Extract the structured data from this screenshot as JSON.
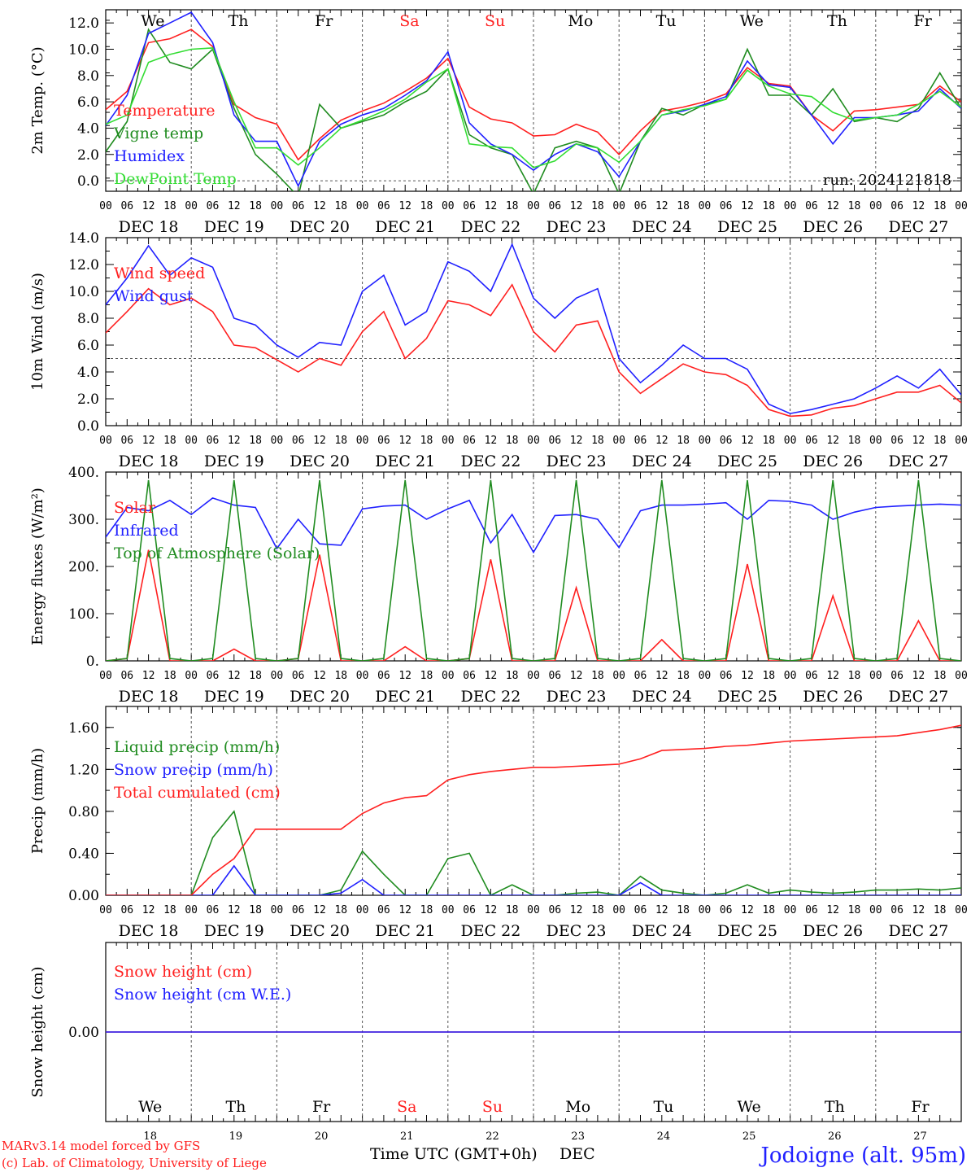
{
  "colors": {
    "red": "#ff2020",
    "blue": "#2020ff",
    "green": "#208c20",
    "lightgreen": "#33dd33",
    "grid": "#555555"
  },
  "x_axis": {
    "days": [
      "DEC 18",
      "DEC 19",
      "DEC 20",
      "DEC 21",
      "DEC 22",
      "DEC 23",
      "DEC 24",
      "DEC 25",
      "DEC 26",
      "DEC 27"
    ],
    "hour_labels": [
      "00",
      "06",
      "12",
      "18"
    ],
    "end_label": "00",
    "weekdays": [
      {
        "label": "We",
        "weekend": false
      },
      {
        "label": "Th",
        "weekend": false
      },
      {
        "label": "Fr",
        "weekend": false
      },
      {
        "label": "Sa",
        "weekend": true
      },
      {
        "label": "Su",
        "weekend": true
      },
      {
        "label": "Mo",
        "weekend": false
      },
      {
        "label": "Tu",
        "weekend": false
      },
      {
        "label": "We",
        "weekend": false
      },
      {
        "label": "Th",
        "weekend": false
      },
      {
        "label": "Fr",
        "weekend": false
      }
    ],
    "day_numbers": [
      "18",
      "19",
      "20",
      "21",
      "22",
      "23",
      "24",
      "25",
      "26",
      "27"
    ],
    "title": "Time UTC (GMT+0h)",
    "month": "DEC"
  },
  "footer": {
    "model": "MARv3.14 model forced by GFS",
    "credit": "(c) Lab. of Climatology, University of Liege",
    "location": "Jodoigne (alt. 95m)"
  },
  "chart_data": [
    {
      "id": "temp",
      "type": "line",
      "ylabel": "2m Temp. (°C)",
      "ylim": [
        -0.8,
        13
      ],
      "ticks": [
        0,
        2,
        4,
        6,
        8,
        10,
        12
      ],
      "tick_labels": [
        "0.0",
        "2.0",
        "4.0",
        "6.0",
        "8.0",
        "10.0",
        "12.0"
      ],
      "ref_line": 0,
      "run_label": "run: 2024121818",
      "x_hours": [
        0,
        6,
        12,
        18,
        24,
        30,
        36,
        42,
        48,
        54,
        60,
        66,
        72,
        78,
        84,
        90,
        96,
        102,
        108,
        114,
        120,
        126,
        132,
        138,
        144,
        150,
        156,
        162,
        168,
        174,
        180,
        186,
        192,
        198,
        204,
        210,
        216,
        222,
        228,
        234,
        240
      ],
      "series": [
        {
          "name": "Temperature",
          "color": "#ff2020",
          "values": [
            5.4,
            6.8,
            10.5,
            10.8,
            11.5,
            10.2,
            5.8,
            4.8,
            4.3,
            1.6,
            3.2,
            4.6,
            5.3,
            5.9,
            6.8,
            7.8,
            9.3,
            5.6,
            4.7,
            4.4,
            3.4,
            3.5,
            4.3,
            3.7,
            2.0,
            3.8,
            5.3,
            5.6,
            6.0,
            6.6,
            8.6,
            7.4,
            7.2,
            5.0,
            3.8,
            5.3,
            5.4,
            5.6,
            5.8,
            7.2,
            6.0
          ]
        },
        {
          "name": "Vigne temp",
          "color": "#208c20",
          "values": [
            2.2,
            4.5,
            11.5,
            9.0,
            8.5,
            10.0,
            5.5,
            2.0,
            0.5,
            -1.2,
            5.8,
            4.0,
            4.5,
            5.0,
            6.0,
            6.8,
            8.5,
            3.5,
            2.5,
            2.0,
            -1.0,
            2.5,
            3.0,
            2.5,
            -1.0,
            3.0,
            5.5,
            5.0,
            5.8,
            6.2,
            10.0,
            6.5,
            6.5,
            5.0,
            7.0,
            4.5,
            4.8,
            4.5,
            5.5,
            8.2,
            5.5
          ]
        },
        {
          "name": "Humidex",
          "color": "#2020ff",
          "values": [
            4.2,
            6.5,
            11.2,
            12.0,
            12.8,
            10.5,
            5.0,
            3.0,
            3.0,
            -0.4,
            3.0,
            4.3,
            5.0,
            5.5,
            6.5,
            7.6,
            9.8,
            4.4,
            2.8,
            2.0,
            0.8,
            2.0,
            2.8,
            2.2,
            0.3,
            3.0,
            5.0,
            5.3,
            5.8,
            6.4,
            9.1,
            7.3,
            7.1,
            5.0,
            2.8,
            4.8,
            4.8,
            5.0,
            5.3,
            7.0,
            5.5
          ]
        },
        {
          "name": "DewPoint Temp",
          "color": "#33dd33",
          "values": [
            4.3,
            5.0,
            9.0,
            9.6,
            10.0,
            10.1,
            6.0,
            2.5,
            2.5,
            1.2,
            2.5,
            4.0,
            4.6,
            5.3,
            6.2,
            7.5,
            8.5,
            2.8,
            2.6,
            2.5,
            1.0,
            1.5,
            2.8,
            2.5,
            1.4,
            3.0,
            5.0,
            5.4,
            5.7,
            6.2,
            8.4,
            7.2,
            6.6,
            6.4,
            5.2,
            4.6,
            4.8,
            5.0,
            5.8,
            6.8,
            5.6
          ]
        }
      ]
    },
    {
      "id": "wind",
      "type": "line",
      "ylabel": "10m Wind (m/s)",
      "ylim": [
        0,
        14
      ],
      "ticks": [
        0,
        2,
        4,
        6,
        8,
        10,
        12,
        14
      ],
      "tick_labels": [
        "0.0",
        "2.0",
        "4.0",
        "6.0",
        "8.0",
        "10.0",
        "12.0",
        "14.0"
      ],
      "ref_line": 5,
      "x_hours": [
        0,
        6,
        12,
        18,
        24,
        30,
        36,
        42,
        48,
        54,
        60,
        66,
        72,
        78,
        84,
        90,
        96,
        102,
        108,
        114,
        120,
        126,
        132,
        138,
        144,
        150,
        156,
        162,
        168,
        174,
        180,
        186,
        192,
        198,
        204,
        210,
        216,
        222,
        228,
        234,
        240
      ],
      "series": [
        {
          "name": "Wind speed",
          "color": "#ff2020",
          "values": [
            6.9,
            8.5,
            10.2,
            9.0,
            9.5,
            8.5,
            6.0,
            5.8,
            4.9,
            4.0,
            5.0,
            4.5,
            7.0,
            8.5,
            5.0,
            6.5,
            9.3,
            9.0,
            8.2,
            10.5,
            7.0,
            5.5,
            7.5,
            7.8,
            4.0,
            2.4,
            3.5,
            4.6,
            4.0,
            3.8,
            3.0,
            1.2,
            0.7,
            0.8,
            1.3,
            1.5,
            2.0,
            2.5,
            2.5,
            3.0,
            1.7
          ]
        },
        {
          "name": "Wind gust",
          "color": "#2020ff",
          "values": [
            9.0,
            11.0,
            13.4,
            11.2,
            12.5,
            11.8,
            8.0,
            7.5,
            6.0,
            5.1,
            6.2,
            6.0,
            10.0,
            11.2,
            7.5,
            8.5,
            12.2,
            11.5,
            10.0,
            13.5,
            9.5,
            8.0,
            9.5,
            10.2,
            5.0,
            3.2,
            4.5,
            6.0,
            5.0,
            5.0,
            4.2,
            1.6,
            0.9,
            1.2,
            1.6,
            2.0,
            2.8,
            3.7,
            2.8,
            4.2,
            2.3
          ]
        }
      ]
    },
    {
      "id": "energy",
      "type": "line",
      "ylabel": "Energy fluxes (W/m²)",
      "ylim": [
        0,
        400
      ],
      "ticks": [
        0,
        100,
        200,
        300,
        400
      ],
      "tick_labels": [
        "0.",
        "100.",
        "200.",
        "300.",
        "400."
      ],
      "x_hours": [
        0,
        6,
        12,
        18,
        24,
        30,
        36,
        42,
        48,
        54,
        60,
        66,
        72,
        78,
        84,
        90,
        96,
        102,
        108,
        114,
        120,
        126,
        132,
        138,
        144,
        150,
        156,
        162,
        168,
        174,
        180,
        186,
        192,
        198,
        204,
        210,
        216,
        222,
        228,
        234,
        240
      ],
      "series": [
        {
          "name": "Solar",
          "color": "#ff2020",
          "values": [
            0,
            5,
            235,
            0,
            0,
            0,
            25,
            0,
            0,
            5,
            225,
            0,
            0,
            0,
            30,
            0,
            0,
            5,
            215,
            0,
            0,
            0,
            155,
            0,
            0,
            0,
            45,
            0,
            0,
            0,
            205,
            0,
            0,
            0,
            138,
            0,
            0,
            0,
            85,
            0,
            0
          ]
        },
        {
          "name": "Infrared",
          "color": "#2020ff",
          "values": [
            262,
            325,
            318,
            340,
            310,
            345,
            330,
            325,
            238,
            300,
            248,
            245,
            322,
            328,
            330,
            300,
            322,
            340,
            250,
            310,
            230,
            308,
            310,
            300,
            240,
            318,
            330,
            330,
            332,
            335,
            300,
            340,
            338,
            330,
            300,
            315,
            325,
            328,
            330,
            332,
            330
          ]
        },
        {
          "name": "Top of Atmosphere (Solar)",
          "color": "#208c20",
          "values": [
            0,
            5,
            383,
            5,
            0,
            5,
            383,
            5,
            0,
            5,
            383,
            5,
            0,
            5,
            383,
            5,
            0,
            5,
            383,
            5,
            0,
            5,
            383,
            5,
            0,
            5,
            383,
            5,
            0,
            5,
            383,
            5,
            0,
            5,
            383,
            5,
            0,
            5,
            383,
            5,
            0
          ]
        }
      ]
    },
    {
      "id": "precip",
      "type": "line",
      "ylabel": "Precip (mm/h)",
      "ylim": [
        0,
        1.8
      ],
      "ticks": [
        0,
        0.4,
        0.8,
        1.2,
        1.6
      ],
      "tick_labels": [
        "0.00",
        "0.40",
        "0.80",
        "1.20",
        "1.60"
      ],
      "x_hours": [
        0,
        6,
        12,
        18,
        24,
        30,
        36,
        42,
        48,
        54,
        60,
        66,
        72,
        78,
        84,
        90,
        96,
        102,
        108,
        114,
        120,
        126,
        132,
        138,
        144,
        150,
        156,
        162,
        168,
        174,
        180,
        186,
        192,
        198,
        204,
        210,
        216,
        222,
        228,
        234,
        240
      ],
      "series": [
        {
          "name": "Liquid precip (mm/h)",
          "color": "#208c20",
          "values": [
            0,
            0,
            0,
            0,
            0,
            0.55,
            0.8,
            0,
            0,
            0,
            0,
            0.05,
            0.42,
            0.2,
            0,
            0,
            0.35,
            0.4,
            0,
            0.1,
            0,
            0,
            0.02,
            0.03,
            0,
            0.18,
            0.05,
            0.02,
            0,
            0.02,
            0.1,
            0.02,
            0.05,
            0.03,
            0.02,
            0.03,
            0.05,
            0.05,
            0.06,
            0.05,
            0.07
          ]
        },
        {
          "name": "Snow precip (mm/h)",
          "color": "#2020ff",
          "values": [
            0,
            0,
            0,
            0,
            0,
            0,
            0.28,
            0,
            0,
            0,
            0,
            0.02,
            0.15,
            0,
            0,
            0,
            0,
            0,
            0,
            0,
            0,
            0,
            0,
            0,
            0,
            0.12,
            0,
            0,
            0,
            0,
            0,
            0,
            0,
            0,
            0,
            0,
            0,
            0,
            0,
            0,
            0
          ]
        },
        {
          "name": "Total cumulated (cm)",
          "color": "#ff2020",
          "values": [
            0,
            0,
            0,
            0,
            0,
            0.2,
            0.35,
            0.63,
            0.63,
            0.63,
            0.63,
            0.63,
            0.78,
            0.88,
            0.93,
            0.95,
            1.1,
            1.15,
            1.18,
            1.2,
            1.22,
            1.22,
            1.23,
            1.24,
            1.25,
            1.3,
            1.38,
            1.39,
            1.4,
            1.42,
            1.43,
            1.45,
            1.47,
            1.48,
            1.49,
            1.5,
            1.51,
            1.52,
            1.55,
            1.58,
            1.62
          ]
        }
      ]
    },
    {
      "id": "snow",
      "type": "line",
      "ylabel": "Snow height (cm)",
      "ylim": [
        -1,
        1
      ],
      "ticks": [
        0
      ],
      "tick_labels": [
        "0.00"
      ],
      "x_hours": [
        0,
        240
      ],
      "series": [
        {
          "name": "Snow height (cm)",
          "color": "#ff2020",
          "values": [
            0,
            0
          ]
        },
        {
          "name": "Snow height (cm W.E.)",
          "color": "#2020ff",
          "values": [
            0,
            0
          ]
        }
      ]
    }
  ]
}
